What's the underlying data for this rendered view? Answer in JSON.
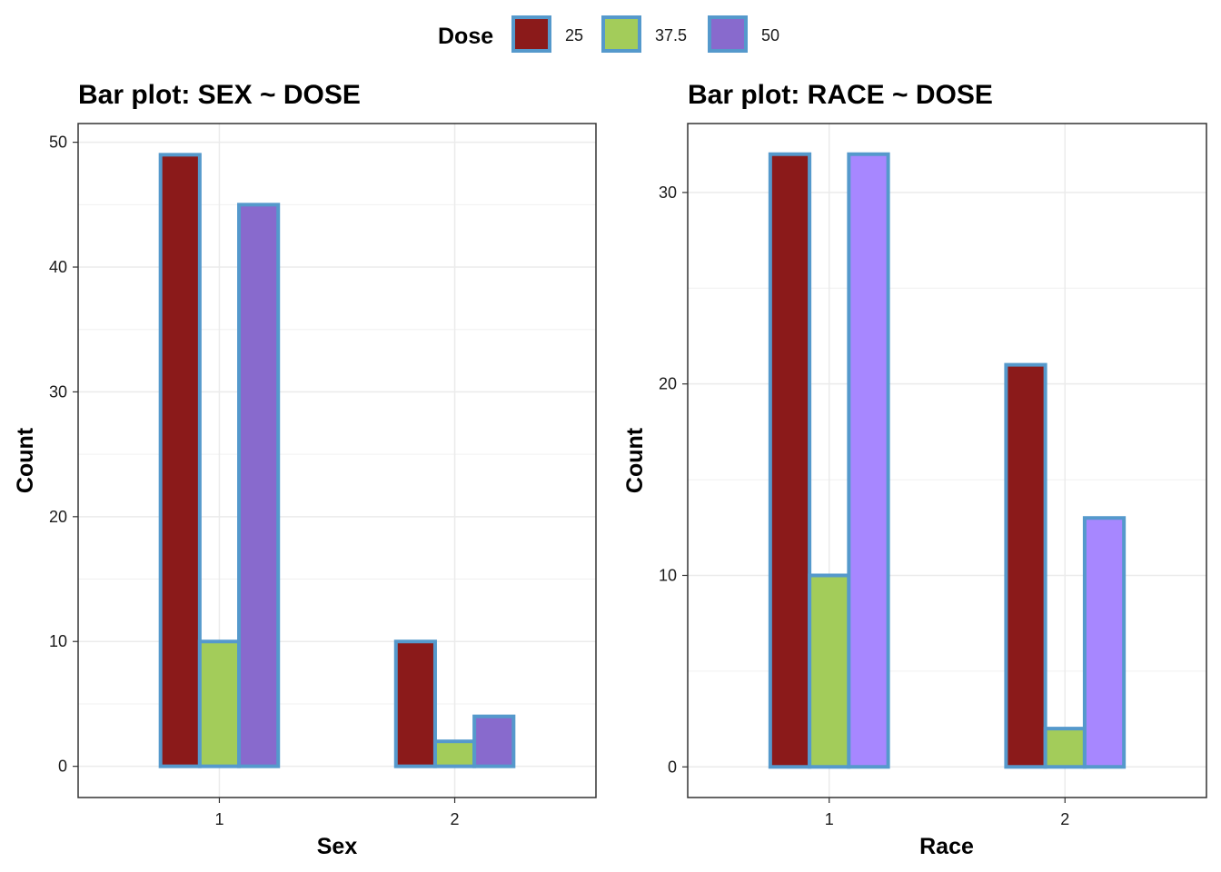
{
  "legend": {
    "title": "Dose",
    "entries": [
      "25",
      "37.5",
      "50"
    ],
    "border_color": "#5599cc"
  },
  "chart_data": [
    {
      "type": "bar",
      "title": "Bar plot: SEX ~ DOSE",
      "xlabel": "Sex",
      "ylabel": "Count",
      "categories": [
        "1",
        "2"
      ],
      "ylim": [
        -2.5,
        51.5
      ],
      "yticks": [
        0,
        10,
        20,
        30,
        40,
        50
      ],
      "grid": true,
      "series": [
        {
          "name": "25",
          "color": "#8b1a1a",
          "values": [
            49,
            10
          ]
        },
        {
          "name": "37.5",
          "color": "#a3cc5a",
          "values": [
            10,
            2
          ]
        },
        {
          "name": "50",
          "color": "#886acd",
          "values": [
            45,
            4
          ]
        }
      ]
    },
    {
      "type": "bar",
      "title": "Bar plot: RACE ~ DOSE",
      "xlabel": "Race",
      "ylabel": "Count",
      "categories": [
        "1",
        "2"
      ],
      "ylim": [
        -1.6,
        33.6
      ],
      "yticks": [
        0,
        10,
        20,
        30
      ],
      "grid": true,
      "series": [
        {
          "name": "25",
          "color": "#8b1a1a",
          "values": [
            32,
            21
          ]
        },
        {
          "name": "37.5",
          "color": "#a3cc5a",
          "values": [
            10,
            2
          ]
        },
        {
          "name": "50",
          "color": "#a787ff",
          "values": [
            32,
            13
          ]
        }
      ]
    }
  ]
}
